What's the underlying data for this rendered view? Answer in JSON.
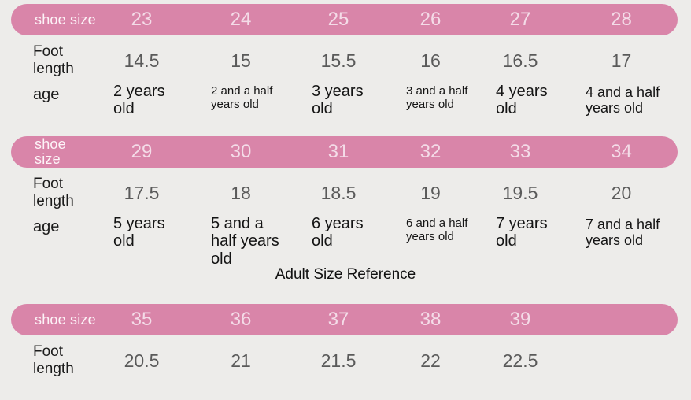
{
  "title": "Adult Size Reference",
  "colors": {
    "background": "#edecea",
    "pill_pink": "#d985a9",
    "pill_label_text": "#fdf4f8",
    "pill_value_text": "#f4dce8",
    "foot_value_text": "#5a5a5a",
    "dark_text": "#141414"
  },
  "chart_data": [
    {
      "type": "table",
      "header_label": "shoe size",
      "header_label_wrap": false,
      "header_values": [
        "23",
        "24",
        "25",
        "26",
        "27",
        "28"
      ],
      "rows": [
        {
          "kind": "foot",
          "label": "Foot length",
          "values": [
            "14.5",
            "15",
            "15.5",
            "16",
            "16.5",
            "17"
          ]
        },
        {
          "kind": "age",
          "label": "age",
          "values": [
            "2 years old",
            "2 and a half years old",
            "3 years old",
            "3 and a half years old",
            "4 years old",
            "4 and a half years old"
          ],
          "emphasis": [
            "lg",
            "sm",
            "lg",
            "sm",
            "lg",
            "md"
          ]
        }
      ]
    },
    {
      "type": "table",
      "header_label": "shoe size",
      "header_label_wrap": true,
      "header_values": [
        "29",
        "30",
        "31",
        "32",
        "33",
        "34"
      ],
      "rows": [
        {
          "kind": "foot",
          "label": "Foot length",
          "values": [
            "17.5",
            "18",
            "18.5",
            "19",
            "19.5",
            "20"
          ]
        },
        {
          "kind": "age",
          "label": "age",
          "values": [
            "5 years old",
            "5 and a half years old",
            "6 years old",
            "6 and a half years old",
            "7 years old",
            "7 and a half years old"
          ],
          "emphasis": [
            "lg",
            "lg",
            "lg",
            "sm",
            "lg",
            "md"
          ]
        }
      ]
    },
    {
      "type": "table",
      "header_label": "shoe size",
      "header_label_wrap": false,
      "header_values": [
        "35",
        "36",
        "37",
        "38",
        "39",
        ""
      ],
      "rows": [
        {
          "kind": "foot",
          "label": "Foot length",
          "values": [
            "20.5",
            "21",
            "21.5",
            "22",
            "22.5",
            ""
          ]
        }
      ]
    }
  ]
}
